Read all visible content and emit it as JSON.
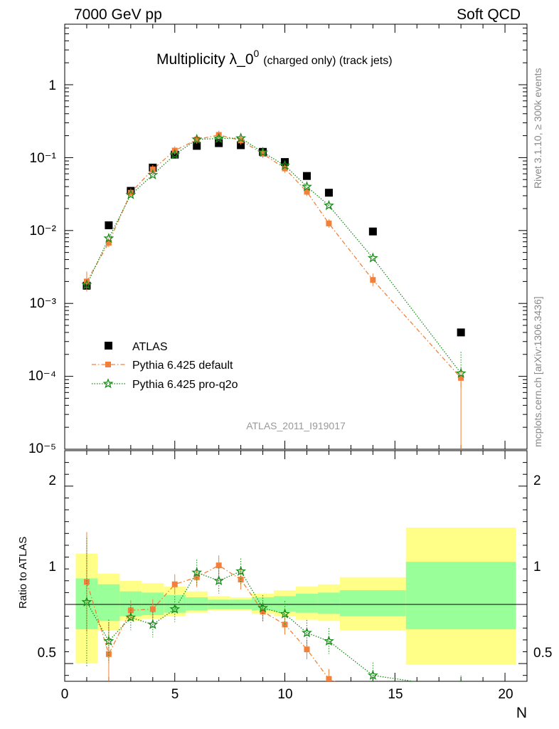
{
  "header": {
    "left": "7000 GeV pp",
    "right": "Soft QCD"
  },
  "side_labels": {
    "top": "Rivet 3.1.10, ≥ 300k events",
    "bottom": "mcplots.cern.ch [arXiv:1306.3436]"
  },
  "watermark": "ATLAS_2011_I919017",
  "colors": {
    "atlas": "#000000",
    "default": "#f2803a",
    "proq2o": "#1a8a1a",
    "band_inner": "#99ff99",
    "band_outer": "#ffff88"
  },
  "chart_data": {
    "type": "scatter",
    "title": "Multiplicity λ_0^0 (charged only) (track jets)",
    "title_main": "Multiplicity λ_0",
    "title_sup": "0",
    "title_small": "(charged only) (track jets)",
    "xlabel": "N",
    "ylabel_ratio": "Ratio to ATLAS",
    "xlim": [
      0,
      21
    ],
    "ylim_log": [
      1e-05,
      1
    ],
    "ratio_ylim": [
      0.35,
      2.3
    ],
    "x_ticks": [
      "0",
      "5",
      "10",
      "15",
      "20"
    ],
    "y_ticks": [
      "1",
      "10⁻¹",
      "10⁻²",
      "10⁻³",
      "10⁻⁴",
      "10⁻⁵"
    ],
    "ratio_ticks": [
      "2",
      "1",
      "0.5"
    ],
    "legend": [
      "ATLAS",
      "Pythia 6.425 default",
      "Pythia 6.425 pro-q2o"
    ],
    "series": [
      {
        "name": "ATLAS",
        "x": [
          1,
          2,
          3,
          4,
          5,
          6,
          7,
          8,
          9,
          10,
          11,
          12,
          14,
          18
        ],
        "y": [
          0.00175,
          0.0118,
          0.035,
          0.073,
          0.11,
          0.145,
          0.158,
          0.148,
          0.12,
          0.087,
          0.056,
          0.033,
          0.0097,
          0.0004
        ]
      },
      {
        "name": "Pythia 6.425 default",
        "x": [
          1,
          2,
          3,
          4,
          5,
          6,
          7,
          8,
          9,
          10,
          11,
          12,
          14,
          18
        ],
        "y": [
          0.002,
          0.0068,
          0.033,
          0.069,
          0.125,
          0.177,
          0.205,
          0.172,
          0.113,
          0.071,
          0.034,
          0.0125,
          0.0021,
          9.5e-05
        ],
        "ratio": [
          1.19,
          0.58,
          0.95,
          0.96,
          1.17,
          1.23,
          1.33,
          1.21,
          0.94,
          0.83,
          0.62,
          0.37,
          0.21,
          0.24
        ]
      },
      {
        "name": "Pythia 6.425 pro-q2o",
        "x": [
          1,
          2,
          3,
          4,
          5,
          6,
          7,
          8,
          9,
          10,
          11,
          12,
          14,
          18
        ],
        "y": [
          0.0018,
          0.0078,
          0.031,
          0.058,
          0.11,
          0.178,
          0.183,
          0.185,
          0.118,
          0.078,
          0.04,
          0.022,
          0.0042,
          0.00011
        ],
        "ratio": [
          1.02,
          0.69,
          0.89,
          0.83,
          0.96,
          1.27,
          1.2,
          1.28,
          0.97,
          0.92,
          0.76,
          0.69,
          0.4,
          0.29
        ]
      }
    ],
    "ratio_bands": [
      {
        "x0": 0.5,
        "x1": 1.5,
        "inner": [
          0.79,
          1.22
        ],
        "outer": [
          0.5,
          1.43
        ]
      },
      {
        "x0": 1.5,
        "x1": 2.5,
        "inner": [
          0.86,
          1.17
        ],
        "outer": [
          0.78,
          1.26
        ]
      },
      {
        "x0": 2.5,
        "x1": 3.5,
        "inner": [
          0.9,
          1.11
        ],
        "outer": [
          0.86,
          1.2
        ]
      },
      {
        "x0": 3.5,
        "x1": 4.5,
        "inner": [
          0.91,
          1.1
        ],
        "outer": [
          0.88,
          1.18
        ]
      },
      {
        "x0": 4.5,
        "x1": 5.5,
        "inner": [
          0.93,
          1.08
        ],
        "outer": [
          0.9,
          1.15
        ]
      },
      {
        "x0": 5.5,
        "x1": 6.5,
        "inner": [
          0.95,
          1.06
        ],
        "outer": [
          0.93,
          1.11
        ]
      },
      {
        "x0": 6.5,
        "x1": 7.5,
        "inner": [
          0.96,
          1.04
        ],
        "outer": [
          0.95,
          1.07
        ]
      },
      {
        "x0": 7.5,
        "x1": 8.5,
        "inner": [
          0.96,
          1.04
        ],
        "outer": [
          0.95,
          1.06
        ]
      },
      {
        "x0": 8.5,
        "x1": 9.5,
        "inner": [
          0.95,
          1.06
        ],
        "outer": [
          0.92,
          1.09
        ]
      },
      {
        "x0": 9.5,
        "x1": 10.5,
        "inner": [
          0.94,
          1.07
        ],
        "outer": [
          0.9,
          1.12
        ]
      },
      {
        "x0": 10.5,
        "x1": 11.5,
        "inner": [
          0.93,
          1.09
        ],
        "outer": [
          0.87,
          1.15
        ]
      },
      {
        "x0": 11.5,
        "x1": 12.5,
        "inner": [
          0.92,
          1.1
        ],
        "outer": [
          0.86,
          1.17
        ]
      },
      {
        "x0": 12.5,
        "x1": 15.5,
        "inner": [
          0.9,
          1.12
        ],
        "outer": [
          0.78,
          1.23
        ]
      },
      {
        "x0": 15.5,
        "x1": 20.5,
        "inner": [
          0.79,
          1.36
        ],
        "outer": [
          0.49,
          1.65
        ]
      }
    ]
  }
}
